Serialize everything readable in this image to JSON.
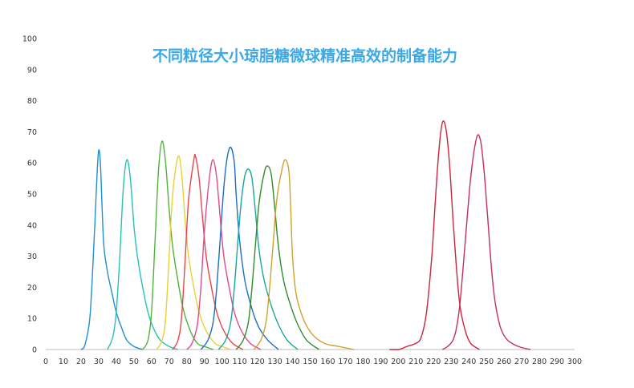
{
  "chart_data": {
    "type": "line",
    "title": "不同粒径大小琼脂糖微球精准高效的制备能力",
    "title_color": "#3aa8e4",
    "xlabel": "",
    "ylabel": "",
    "xlim": [
      0,
      300
    ],
    "ylim": [
      0,
      100
    ],
    "x_ticks": [
      "0",
      "10",
      "20",
      "30",
      "40",
      "50",
      "60",
      "70",
      "80",
      "90",
      "100",
      "110",
      "120",
      "130",
      "140",
      "150",
      "160",
      "170",
      "180",
      "190",
      "200",
      "210",
      "220",
      "230",
      "240",
      "250",
      "260",
      "270",
      "280",
      "290",
      "300"
    ],
    "y_ticks": [
      "0",
      "10",
      "20",
      "30",
      "40",
      "50",
      "60",
      "70",
      "80",
      "90",
      "100"
    ],
    "grid": false,
    "legend": "none",
    "series": [
      {
        "color": "#1f8fd6",
        "peak_x": 30,
        "peak_y": 64,
        "points": [
          [
            20,
            0
          ],
          [
            22,
            1
          ],
          [
            25,
            10
          ],
          [
            27,
            30
          ],
          [
            29,
            55
          ],
          [
            30,
            64
          ],
          [
            31,
            60
          ],
          [
            32,
            45
          ],
          [
            33,
            33
          ],
          [
            35,
            25
          ],
          [
            38,
            17
          ],
          [
            40,
            12
          ],
          [
            43,
            7
          ],
          [
            46,
            3
          ],
          [
            50,
            1
          ],
          [
            55,
            0
          ]
        ]
      },
      {
        "color": "#26c2b6",
        "peak_x": 46,
        "peak_y": 61,
        "points": [
          [
            35,
            0
          ],
          [
            38,
            4
          ],
          [
            40,
            12
          ],
          [
            42,
            30
          ],
          [
            44,
            52
          ],
          [
            46,
            61
          ],
          [
            48,
            55
          ],
          [
            50,
            40
          ],
          [
            52,
            30
          ],
          [
            55,
            20
          ],
          [
            58,
            12
          ],
          [
            61,
            7
          ],
          [
            65,
            3
          ],
          [
            70,
            1
          ],
          [
            75,
            0
          ]
        ]
      },
      {
        "color": "#4fb33c",
        "peak_x": 66,
        "peak_y": 67,
        "points": [
          [
            55,
            0
          ],
          [
            58,
            3
          ],
          [
            60,
            12
          ],
          [
            62,
            35
          ],
          [
            64,
            58
          ],
          [
            66,
            67
          ],
          [
            68,
            60
          ],
          [
            70,
            45
          ],
          [
            72,
            33
          ],
          [
            75,
            22
          ],
          [
            78,
            13
          ],
          [
            82,
            6
          ],
          [
            86,
            2
          ],
          [
            90,
            1
          ],
          [
            95,
            0
          ]
        ]
      },
      {
        "color": "#e8d134",
        "peak_x": 75,
        "peak_y": 62,
        "points": [
          [
            63,
            0
          ],
          [
            66,
            3
          ],
          [
            68,
            10
          ],
          [
            70,
            30
          ],
          [
            72,
            50
          ],
          [
            75,
            62
          ],
          [
            77,
            57
          ],
          [
            79,
            42
          ],
          [
            81,
            30
          ],
          [
            84,
            20
          ],
          [
            87,
            12
          ],
          [
            91,
            6
          ],
          [
            96,
            2
          ],
          [
            100,
            1
          ],
          [
            105,
            0
          ]
        ]
      },
      {
        "color": "#e8454c",
        "peak_x": 85,
        "peak_y": 62,
        "points": [
          [
            72,
            0
          ],
          [
            75,
            3
          ],
          [
            77,
            10
          ],
          [
            79,
            28
          ],
          [
            81,
            48
          ],
          [
            84,
            61
          ],
          [
            85,
            62
          ],
          [
            87,
            55
          ],
          [
            89,
            42
          ],
          [
            91,
            30
          ],
          [
            94,
            20
          ],
          [
            97,
            12
          ],
          [
            101,
            6
          ],
          [
            106,
            2
          ],
          [
            112,
            0
          ]
        ]
      },
      {
        "color": "#e04a8e",
        "peak_x": 95,
        "peak_y": 61,
        "points": [
          [
            80,
            0
          ],
          [
            83,
            2
          ],
          [
            86,
            8
          ],
          [
            88,
            20
          ],
          [
            90,
            38
          ],
          [
            93,
            56
          ],
          [
            95,
            61
          ],
          [
            97,
            55
          ],
          [
            99,
            42
          ],
          [
            101,
            30
          ],
          [
            104,
            20
          ],
          [
            107,
            12
          ],
          [
            111,
            6
          ],
          [
            116,
            2
          ],
          [
            122,
            0
          ]
        ]
      },
      {
        "color": "#1d6fc4",
        "peak_x": 105,
        "peak_y": 65,
        "points": [
          [
            88,
            0
          ],
          [
            92,
            3
          ],
          [
            95,
            9
          ],
          [
            97,
            20
          ],
          [
            99,
            36
          ],
          [
            101,
            52
          ],
          [
            103,
            62
          ],
          [
            105,
            65
          ],
          [
            107,
            60
          ],
          [
            108,
            50
          ],
          [
            110,
            35
          ],
          [
            113,
            22
          ],
          [
            117,
            13
          ],
          [
            121,
            7
          ],
          [
            126,
            3
          ],
          [
            132,
            0
          ]
        ]
      },
      {
        "color": "#18a79c",
        "peak_x": 115,
        "peak_y": 58,
        "points": [
          [
            98,
            0
          ],
          [
            102,
            3
          ],
          [
            105,
            9
          ],
          [
            107,
            20
          ],
          [
            109,
            35
          ],
          [
            111,
            48
          ],
          [
            113,
            56
          ],
          [
            115,
            58
          ],
          [
            117,
            55
          ],
          [
            119,
            44
          ],
          [
            121,
            32
          ],
          [
            124,
            22
          ],
          [
            128,
            14
          ],
          [
            132,
            8
          ],
          [
            137,
            3
          ],
          [
            143,
            0
          ]
        ]
      },
      {
        "color": "#2e8e2e",
        "peak_x": 126,
        "peak_y": 59,
        "points": [
          [
            108,
            0
          ],
          [
            112,
            3
          ],
          [
            115,
            9
          ],
          [
            117,
            20
          ],
          [
            119,
            34
          ],
          [
            121,
            47
          ],
          [
            124,
            57
          ],
          [
            126,
            59
          ],
          [
            128,
            56
          ],
          [
            130,
            45
          ],
          [
            132,
            33
          ],
          [
            135,
            22
          ],
          [
            139,
            14
          ],
          [
            143,
            8
          ],
          [
            148,
            3
          ],
          [
            155,
            0
          ]
        ]
      },
      {
        "color": "#d0a12e",
        "peak_x": 136,
        "peak_y": 61,
        "points": [
          [
            118,
            0
          ],
          [
            122,
            3
          ],
          [
            125,
            9
          ],
          [
            127,
            20
          ],
          [
            129,
            34
          ],
          [
            131,
            48
          ],
          [
            134,
            58
          ],
          [
            136,
            61
          ],
          [
            138,
            57
          ],
          [
            139,
            45
          ],
          [
            140,
            30
          ],
          [
            142,
            18
          ],
          [
            146,
            10
          ],
          [
            151,
            5
          ],
          [
            158,
            2
          ],
          [
            166,
            1
          ],
          [
            175,
            0
          ]
        ]
      },
      {
        "color": "#c8263d",
        "peak_x": 225,
        "peak_y": 73,
        "points": [
          [
            195,
            0
          ],
          [
            200,
            0
          ],
          [
            205,
            1
          ],
          [
            210,
            2
          ],
          [
            213,
            4
          ],
          [
            216,
            12
          ],
          [
            219,
            30
          ],
          [
            221,
            48
          ],
          [
            223,
            64
          ],
          [
            225,
            73
          ],
          [
            227,
            71
          ],
          [
            229,
            60
          ],
          [
            231,
            42
          ],
          [
            233,
            26
          ],
          [
            235,
            14
          ],
          [
            238,
            6
          ],
          [
            241,
            2
          ],
          [
            246,
            0
          ]
        ]
      },
      {
        "color": "#c4305c",
        "peak_x": 245,
        "peak_y": 69,
        "points": [
          [
            225,
            0
          ],
          [
            228,
            1
          ],
          [
            231,
            3
          ],
          [
            233,
            7
          ],
          [
            235,
            15
          ],
          [
            237,
            28
          ],
          [
            239,
            42
          ],
          [
            241,
            55
          ],
          [
            243,
            64
          ],
          [
            245,
            69
          ],
          [
            247,
            66
          ],
          [
            249,
            55
          ],
          [
            251,
            40
          ],
          [
            253,
            25
          ],
          [
            255,
            15
          ],
          [
            258,
            7
          ],
          [
            262,
            3
          ],
          [
            268,
            1
          ],
          [
            275,
            0
          ]
        ]
      }
    ]
  }
}
